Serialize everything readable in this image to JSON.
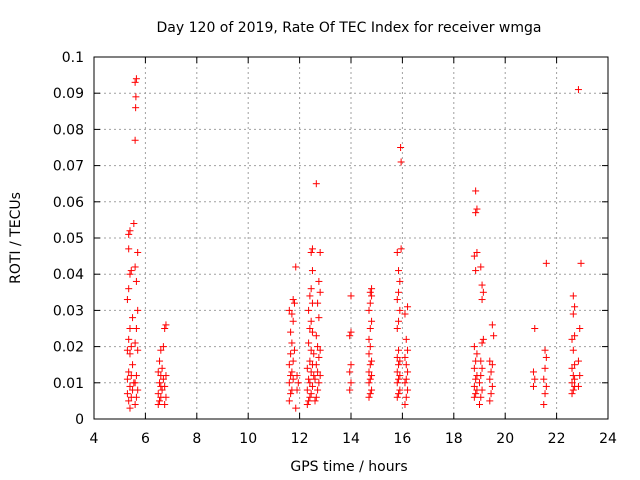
{
  "chart_data": {
    "type": "scatter",
    "title": "Day 120 of 2019, Rate Of TEC Index for receiver wmga",
    "xlabel": "GPS time / hours",
    "ylabel": "ROTI / TECUs",
    "xlim": [
      4,
      24
    ],
    "ylim": [
      0,
      0.1
    ],
    "x_ticks": [
      "4",
      "6",
      "8",
      "10",
      "12",
      "14",
      "16",
      "18",
      "20",
      "22",
      "24"
    ],
    "y_ticks": [
      "0",
      "0.01",
      "0.02",
      "0.03",
      "0.04",
      "0.05",
      "0.06",
      "0.07",
      "0.08",
      "0.09",
      "0.1"
    ],
    "grid": true,
    "marker": "+",
    "colors": {
      "points": "#ff0000",
      "grid": "#a0a0a0",
      "axes": "#000000"
    },
    "series": [
      {
        "name": "ROTI",
        "points": [
          [
            5.4,
            0.003
          ],
          [
            5.35,
            0.005
          ],
          [
            5.45,
            0.006
          ],
          [
            5.3,
            0.007
          ],
          [
            5.5,
            0.008
          ],
          [
            5.4,
            0.009
          ],
          [
            5.55,
            0.01
          ],
          [
            5.3,
            0.011
          ],
          [
            5.45,
            0.012
          ],
          [
            5.35,
            0.013
          ],
          [
            5.5,
            0.015
          ],
          [
            5.4,
            0.018
          ],
          [
            5.3,
            0.019
          ],
          [
            5.45,
            0.02
          ],
          [
            5.35,
            0.022
          ],
          [
            5.4,
            0.025
          ],
          [
            5.5,
            0.028
          ],
          [
            5.3,
            0.033
          ],
          [
            5.35,
            0.036
          ],
          [
            5.4,
            0.04
          ],
          [
            5.45,
            0.041
          ],
          [
            5.35,
            0.047
          ],
          [
            5.4,
            0.052
          ],
          [
            5.35,
            0.051
          ],
          [
            5.6,
            0.004
          ],
          [
            5.65,
            0.006
          ],
          [
            5.7,
            0.008
          ],
          [
            5.6,
            0.01
          ],
          [
            5.65,
            0.012
          ],
          [
            5.7,
            0.019
          ],
          [
            5.6,
            0.021
          ],
          [
            5.65,
            0.025
          ],
          [
            5.7,
            0.03
          ],
          [
            5.65,
            0.038
          ],
          [
            5.6,
            0.042
          ],
          [
            5.7,
            0.046
          ],
          [
            5.55,
            0.054
          ],
          [
            5.6,
            0.077
          ],
          [
            5.62,
            0.086
          ],
          [
            5.63,
            0.089
          ],
          [
            5.6,
            0.093
          ],
          [
            5.65,
            0.094
          ],
          [
            6.5,
            0.004
          ],
          [
            6.55,
            0.005
          ],
          [
            6.6,
            0.006
          ],
          [
            6.5,
            0.007
          ],
          [
            6.65,
            0.008
          ],
          [
            6.6,
            0.009
          ],
          [
            6.55,
            0.01
          ],
          [
            6.7,
            0.011
          ],
          [
            6.6,
            0.012
          ],
          [
            6.5,
            0.013
          ],
          [
            6.65,
            0.014
          ],
          [
            6.55,
            0.016
          ],
          [
            6.6,
            0.019
          ],
          [
            6.7,
            0.02
          ],
          [
            6.75,
            0.004
          ],
          [
            6.8,
            0.006
          ],
          [
            6.75,
            0.009
          ],
          [
            6.8,
            0.012
          ],
          [
            6.75,
            0.025
          ],
          [
            6.8,
            0.026
          ],
          [
            11.6,
            0.005
          ],
          [
            11.65,
            0.007
          ],
          [
            11.7,
            0.008
          ],
          [
            11.6,
            0.01
          ],
          [
            11.75,
            0.011
          ],
          [
            11.65,
            0.012
          ],
          [
            11.7,
            0.013
          ],
          [
            11.6,
            0.015
          ],
          [
            11.75,
            0.016
          ],
          [
            11.65,
            0.018
          ],
          [
            11.8,
            0.019
          ],
          [
            11.7,
            0.021
          ],
          [
            11.65,
            0.024
          ],
          [
            11.75,
            0.027
          ],
          [
            11.7,
            0.029
          ],
          [
            11.6,
            0.03
          ],
          [
            11.8,
            0.032
          ],
          [
            11.75,
            0.033
          ],
          [
            11.85,
            0.003
          ],
          [
            11.85,
            0.042
          ],
          [
            11.9,
            0.008
          ],
          [
            11.95,
            0.01
          ],
          [
            11.9,
            0.012
          ],
          [
            12.3,
            0.004
          ],
          [
            12.35,
            0.005
          ],
          [
            12.4,
            0.006
          ],
          [
            12.45,
            0.007
          ],
          [
            12.3,
            0.008
          ],
          [
            12.5,
            0.009
          ],
          [
            12.4,
            0.01
          ],
          [
            12.35,
            0.011
          ],
          [
            12.55,
            0.012
          ],
          [
            12.45,
            0.013
          ],
          [
            12.3,
            0.014
          ],
          [
            12.5,
            0.015
          ],
          [
            12.4,
            0.016
          ],
          [
            12.55,
            0.018
          ],
          [
            12.45,
            0.019
          ],
          [
            12.35,
            0.021
          ],
          [
            12.5,
            0.024
          ],
          [
            12.4,
            0.025
          ],
          [
            12.45,
            0.027
          ],
          [
            12.35,
            0.03
          ],
          [
            12.5,
            0.032
          ],
          [
            12.4,
            0.034
          ],
          [
            12.45,
            0.036
          ],
          [
            12.5,
            0.041
          ],
          [
            12.45,
            0.046
          ],
          [
            12.5,
            0.047
          ],
          [
            12.6,
            0.005
          ],
          [
            12.65,
            0.006
          ],
          [
            12.7,
            0.008
          ],
          [
            12.75,
            0.01
          ],
          [
            12.6,
            0.011
          ],
          [
            12.8,
            0.012
          ],
          [
            12.7,
            0.013
          ],
          [
            12.65,
            0.015
          ],
          [
            12.75,
            0.017
          ],
          [
            12.8,
            0.019
          ],
          [
            12.7,
            0.02
          ],
          [
            12.65,
            0.023
          ],
          [
            12.75,
            0.028
          ],
          [
            12.7,
            0.032
          ],
          [
            12.8,
            0.035
          ],
          [
            12.75,
            0.038
          ],
          [
            12.8,
            0.046
          ],
          [
            12.65,
            0.065
          ],
          [
            13.95,
            0.008
          ],
          [
            14.0,
            0.01
          ],
          [
            13.95,
            0.013
          ],
          [
            14.0,
            0.015
          ],
          [
            13.95,
            0.023
          ],
          [
            14.0,
            0.024
          ],
          [
            14.0,
            0.034
          ],
          [
            14.7,
            0.006
          ],
          [
            14.75,
            0.007
          ],
          [
            14.8,
            0.008
          ],
          [
            14.7,
            0.01
          ],
          [
            14.75,
            0.011
          ],
          [
            14.8,
            0.012
          ],
          [
            14.7,
            0.013
          ],
          [
            14.75,
            0.015
          ],
          [
            14.8,
            0.016
          ],
          [
            14.7,
            0.018
          ],
          [
            14.75,
            0.02
          ],
          [
            14.7,
            0.022
          ],
          [
            14.75,
            0.025
          ],
          [
            14.8,
            0.027
          ],
          [
            14.7,
            0.03
          ],
          [
            14.75,
            0.032
          ],
          [
            14.8,
            0.034
          ],
          [
            14.75,
            0.035
          ],
          [
            14.8,
            0.036
          ],
          [
            15.8,
            0.006
          ],
          [
            15.85,
            0.007
          ],
          [
            15.9,
            0.008
          ],
          [
            15.8,
            0.01
          ],
          [
            15.85,
            0.011
          ],
          [
            15.9,
            0.012
          ],
          [
            15.8,
            0.013
          ],
          [
            15.85,
            0.015
          ],
          [
            15.9,
            0.016
          ],
          [
            15.8,
            0.017
          ],
          [
            15.85,
            0.019
          ],
          [
            15.8,
            0.025
          ],
          [
            15.85,
            0.027
          ],
          [
            15.9,
            0.03
          ],
          [
            15.8,
            0.033
          ],
          [
            15.85,
            0.035
          ],
          [
            15.9,
            0.038
          ],
          [
            15.85,
            0.041
          ],
          [
            15.8,
            0.046
          ],
          [
            15.95,
            0.047
          ],
          [
            15.95,
            0.071
          ],
          [
            15.93,
            0.075
          ],
          [
            16.1,
            0.004
          ],
          [
            16.15,
            0.006
          ],
          [
            16.2,
            0.008
          ],
          [
            16.1,
            0.01
          ],
          [
            16.15,
            0.011
          ],
          [
            16.2,
            0.013
          ],
          [
            16.15,
            0.015
          ],
          [
            16.1,
            0.017
          ],
          [
            16.2,
            0.019
          ],
          [
            16.15,
            0.022
          ],
          [
            16.1,
            0.029
          ],
          [
            16.2,
            0.031
          ],
          [
            18.8,
            0.006
          ],
          [
            18.85,
            0.007
          ],
          [
            18.9,
            0.008
          ],
          [
            18.8,
            0.009
          ],
          [
            18.85,
            0.011
          ],
          [
            18.9,
            0.012
          ],
          [
            18.8,
            0.014
          ],
          [
            18.85,
            0.016
          ],
          [
            18.9,
            0.018
          ],
          [
            18.8,
            0.02
          ],
          [
            18.85,
            0.041
          ],
          [
            18.8,
            0.045
          ],
          [
            18.9,
            0.046
          ],
          [
            18.85,
            0.057
          ],
          [
            18.9,
            0.058
          ],
          [
            18.85,
            0.063
          ],
          [
            19.0,
            0.004
          ],
          [
            19.05,
            0.006
          ],
          [
            19.1,
            0.008
          ],
          [
            19.0,
            0.01
          ],
          [
            19.05,
            0.012
          ],
          [
            19.1,
            0.014
          ],
          [
            19.05,
            0.016
          ],
          [
            19.1,
            0.021
          ],
          [
            19.15,
            0.022
          ],
          [
            19.1,
            0.033
          ],
          [
            19.15,
            0.035
          ],
          [
            19.1,
            0.037
          ],
          [
            19.05,
            0.042
          ],
          [
            19.4,
            0.005
          ],
          [
            19.45,
            0.007
          ],
          [
            19.5,
            0.009
          ],
          [
            19.4,
            0.011
          ],
          [
            19.45,
            0.013
          ],
          [
            19.5,
            0.015
          ],
          [
            19.4,
            0.016
          ],
          [
            19.55,
            0.023
          ],
          [
            19.5,
            0.026
          ],
          [
            21.1,
            0.009
          ],
          [
            21.15,
            0.011
          ],
          [
            21.1,
            0.013
          ],
          [
            21.15,
            0.025
          ],
          [
            21.5,
            0.004
          ],
          [
            21.55,
            0.007
          ],
          [
            21.6,
            0.009
          ],
          [
            21.5,
            0.011
          ],
          [
            21.55,
            0.014
          ],
          [
            21.6,
            0.017
          ],
          [
            21.55,
            0.019
          ],
          [
            21.6,
            0.043
          ],
          [
            22.6,
            0.007
          ],
          [
            22.65,
            0.008
          ],
          [
            22.7,
            0.009
          ],
          [
            22.6,
            0.01
          ],
          [
            22.7,
            0.011
          ],
          [
            22.65,
            0.012
          ],
          [
            22.6,
            0.014
          ],
          [
            22.7,
            0.015
          ],
          [
            22.65,
            0.019
          ],
          [
            22.6,
            0.022
          ],
          [
            22.7,
            0.023
          ],
          [
            22.65,
            0.029
          ],
          [
            22.7,
            0.031
          ],
          [
            22.65,
            0.034
          ],
          [
            22.85,
            0.009
          ],
          [
            22.9,
            0.012
          ],
          [
            22.85,
            0.016
          ],
          [
            22.9,
            0.025
          ],
          [
            22.95,
            0.043
          ],
          [
            22.85,
            0.091
          ]
        ]
      }
    ]
  }
}
